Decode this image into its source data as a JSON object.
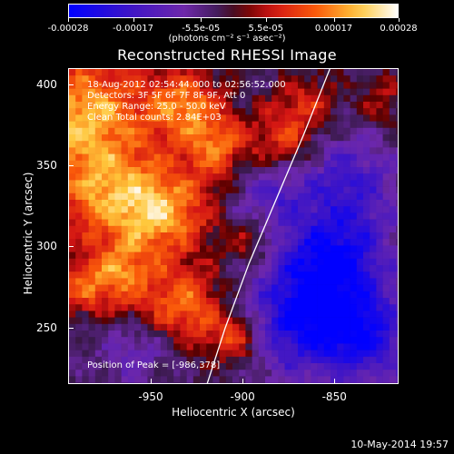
{
  "colorbar": {
    "ticks": [
      "-0.00028",
      "-0.00017",
      "-5.5e-05",
      "5.5e-05",
      "0.00017",
      "0.00028"
    ],
    "unit": "(photons cm⁻² s⁻¹ asec⁻²)",
    "range": [
      -0.00028,
      0.00028
    ]
  },
  "chart_data": {
    "type": "heatmap",
    "title": "Reconstructed RHESSI Image",
    "xlabel": "Heliocentric X (arcsec)",
    "ylabel": "Heliocentric Y (arcsec)",
    "xlim": [
      -995,
      -815
    ],
    "ylim": [
      215,
      410
    ],
    "xticks": [
      "-950",
      "-900",
      "-850"
    ],
    "yticks": [
      "250",
      "300",
      "350",
      "400"
    ],
    "peak": [
      -986,
      378
    ],
    "annotations": [
      "18-Aug-2012 02:54:44.000 to 02:56:52.000",
      "Detectors: 3F 5F 6F 7F 8F 9F, Att 0",
      "Energy Range: 25.0 - 50.0 keV",
      "Clean    Total counts: 2.84E+03"
    ],
    "peak_label": "Position of Peak = [-986,378]",
    "limb": [
      [
        -920,
        215
      ],
      [
        -910,
        250
      ],
      [
        -897,
        290
      ],
      [
        -882,
        330
      ],
      [
        -867,
        370
      ],
      [
        -853,
        410
      ]
    ]
  },
  "footer": {
    "date": "10-May-2014 19:57"
  }
}
